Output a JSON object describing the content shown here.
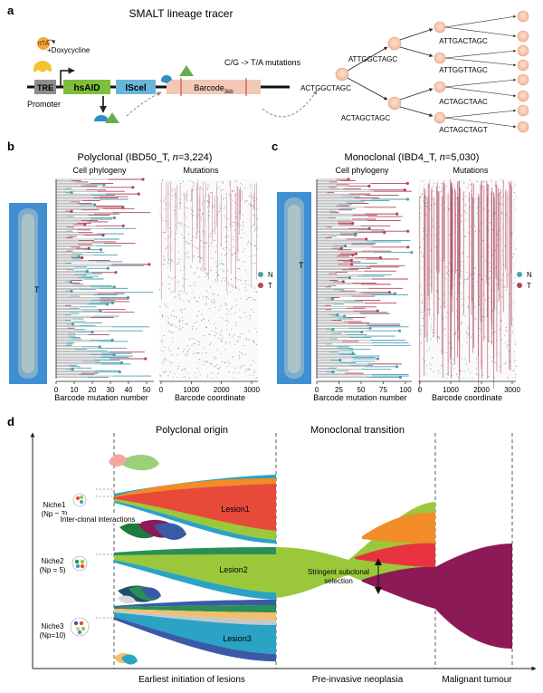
{
  "panel_a": {
    "letter": "a",
    "title": "SMALT lineage tracer",
    "rtta": "rtTA",
    "doxycycline": "+Doxycycline",
    "promoter": "Promoter",
    "tre": "TRE",
    "hsaid": "hsAID",
    "iscei": "IScel",
    "barcode": "Barcode",
    "barcode_sub": "3kb",
    "mutation_note": "C/G -> T/A mutations",
    "root_seq": "ACTGGCTAGC",
    "tree_level1": [
      "ATTGGCTAGC",
      "ACTAGCTAGC"
    ],
    "tree_level2": [
      "ATTGACTAGC",
      "ATTGGTTAGC",
      "ACTAGCTAAC",
      "ACTAGCTAGT"
    ]
  },
  "panel_b": {
    "letter": "b",
    "title_prefix": "Polyclonal (IBD50_T, ",
    "title_n": "n",
    "title_suffix": "=3,224)",
    "cell_phylogeny": "Cell phylogeny",
    "mutations": "Mutations",
    "tissue_label": "T",
    "x_ticks_phylo": [
      "0",
      "10",
      "20",
      "30",
      "40",
      "50"
    ],
    "x_ticks_mut": [
      "0",
      "1000",
      "2000",
      "3000"
    ],
    "xlabel_phylo": "Barcode mutation number",
    "xlabel_mut": "Barcode coordinate",
    "legend": [
      {
        "label": "N",
        "color": "#4a9fb0"
      },
      {
        "label": "T",
        "color": "#b0455a"
      }
    ]
  },
  "panel_c": {
    "letter": "c",
    "title_prefix": "Monoclonal (IBD4_T, ",
    "title_n": "n",
    "title_suffix": "=5,030)",
    "cell_phylogeny": "Cell phylogeny",
    "mutations": "Mutations",
    "tissue_label": "T",
    "x_ticks_phylo": [
      "0",
      "25",
      "50",
      "75",
      "100"
    ],
    "x_ticks_mut": [
      "0",
      "1000",
      "2000",
      "3000"
    ],
    "xlabel_phylo": "Barcode mutation number",
    "xlabel_mut": "Barcode coordinate",
    "legend": [
      {
        "label": "N",
        "color": "#4a9fb0"
      },
      {
        "label": "T",
        "color": "#b0455a"
      }
    ]
  },
  "panel_d": {
    "letter": "d",
    "stage_titles": [
      "Polyclonal origin",
      "Monoclonal transition"
    ],
    "niches": [
      {
        "name": "Niche1",
        "np": "(Np = 3)"
      },
      {
        "name": "Niche2",
        "np": "(Np = 5)"
      },
      {
        "name": "Niche3",
        "np": "(Np=10)"
      }
    ],
    "interclonal": "Inter-clonal interactions",
    "lesions": [
      "Lesion1",
      "Lesion2",
      "Lesion3"
    ],
    "selection": [
      "Stringent subclonal",
      "selection"
    ],
    "bottom_labels": [
      "Earliest initiation of lesions",
      "Pre-invasive neoplasia",
      "Malignant tumour"
    ]
  },
  "colors": {
    "normal": "#4a9fb0",
    "tumour": "#b0455a",
    "lime": "#9bc83a",
    "red": "#e8333f",
    "orange": "#f28c28",
    "maroon": "#8b1a57",
    "teal": "#2ba3c4",
    "tissue_blue": "#3f8fd2"
  }
}
